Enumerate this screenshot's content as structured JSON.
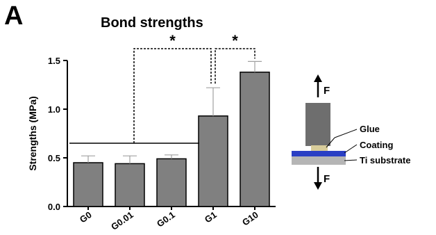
{
  "panel_letter": "A",
  "chart_data": {
    "type": "bar",
    "title": "Bond strengths",
    "xlabel": "",
    "ylabel": "Strengths (MPa)",
    "categories": [
      "G0",
      "G0.01",
      "G0.1",
      "G1",
      "G10"
    ],
    "values": [
      0.45,
      0.44,
      0.49,
      0.93,
      1.38
    ],
    "errors": [
      0.07,
      0.08,
      0.04,
      0.29,
      0.11
    ],
    "ylim": [
      0,
      1.5
    ],
    "yticks": [
      0.0,
      0.5,
      1.0,
      1.5
    ],
    "ytick_labels": [
      "0.0",
      "0.5",
      "1.0",
      "1.5"
    ],
    "bar_color": "#808080",
    "significance": [
      {
        "from": "G0–G0.1 group",
        "to": "G1",
        "label": "*"
      },
      {
        "from": "G1",
        "to": "G10",
        "label": "*"
      }
    ],
    "grid": false
  },
  "diagram": {
    "force_top": "F",
    "force_bottom": "F",
    "labels": [
      "Glue",
      "Coating",
      "Ti substrate"
    ],
    "colors": {
      "block": "#6e6e6e",
      "glue": "#d8cc9a",
      "coating": "#2a3fc4",
      "substrate": "#b5b5b5"
    }
  }
}
